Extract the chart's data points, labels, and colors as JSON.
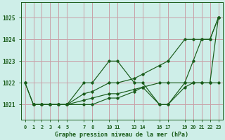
{
  "title": "Graphe pression niveau de la mer (hPa)",
  "bg_color": "#ceeee8",
  "grid_color": "#c8a0a8",
  "line_color": "#1a5c1a",
  "marker_color": "#1a5c1a",
  "ylim": [
    1020.3,
    1025.7
  ],
  "yticks": [
    1021,
    1022,
    1023,
    1024,
    1025
  ],
  "lines": [
    {
      "x": [
        0,
        1,
        2,
        3,
        4,
        5,
        7,
        8,
        10,
        11,
        13,
        14,
        16,
        17,
        19,
        20,
        21,
        22,
        23
      ],
      "y": [
        1022,
        1021,
        1021,
        1021,
        1021,
        1021,
        1021.5,
        1021.6,
        1022,
        1022,
        1022.2,
        1022.4,
        1022.8,
        1023,
        1024,
        1024,
        1024,
        1024,
        1025
      ]
    },
    {
      "x": [
        0,
        1,
        2,
        3,
        4,
        5,
        7,
        8,
        10,
        11,
        13,
        14,
        16,
        17,
        19,
        20,
        21,
        22,
        23
      ],
      "y": [
        1022,
        1021,
        1021,
        1021,
        1021,
        1021,
        1022,
        1022,
        1023,
        1023,
        1022,
        1022,
        1021,
        1021,
        1022,
        1023,
        1024,
        1024,
        1025
      ]
    },
    {
      "x": [
        1,
        2,
        3,
        4,
        5,
        7,
        8,
        10,
        11,
        13,
        14,
        16,
        17,
        19,
        20,
        21,
        22,
        23
      ],
      "y": [
        1021,
        1021,
        1021,
        1021,
        1021,
        1021,
        1021,
        1021.3,
        1021.3,
        1021.6,
        1021.8,
        1021,
        1021,
        1021.8,
        1022,
        1022,
        1022,
        1025
      ]
    },
    {
      "x": [
        1,
        2,
        3,
        4,
        5,
        7,
        8,
        10,
        11,
        13,
        14,
        16,
        17,
        19,
        20,
        21,
        22,
        23
      ],
      "y": [
        1021,
        1021,
        1021,
        1021,
        1021,
        1021.2,
        1021.3,
        1021.5,
        1021.5,
        1021.7,
        1021.8,
        1022,
        1022,
        1022,
        1022,
        1022,
        1022,
        1022
      ]
    }
  ],
  "xtick_positions": [
    0,
    1,
    2,
    3,
    4,
    5,
    7,
    8,
    10,
    11,
    13,
    14,
    16,
    17,
    19,
    20,
    21,
    22,
    23
  ],
  "xtick_labels": [
    "0",
    "1",
    "2",
    "3",
    "4",
    "5",
    "7",
    "8",
    "10",
    "11",
    "13",
    "14",
    "16",
    "17",
    "19",
    "20",
    "21",
    "22",
    "23"
  ],
  "figsize": [
    3.2,
    2.0
  ],
  "dpi": 100
}
